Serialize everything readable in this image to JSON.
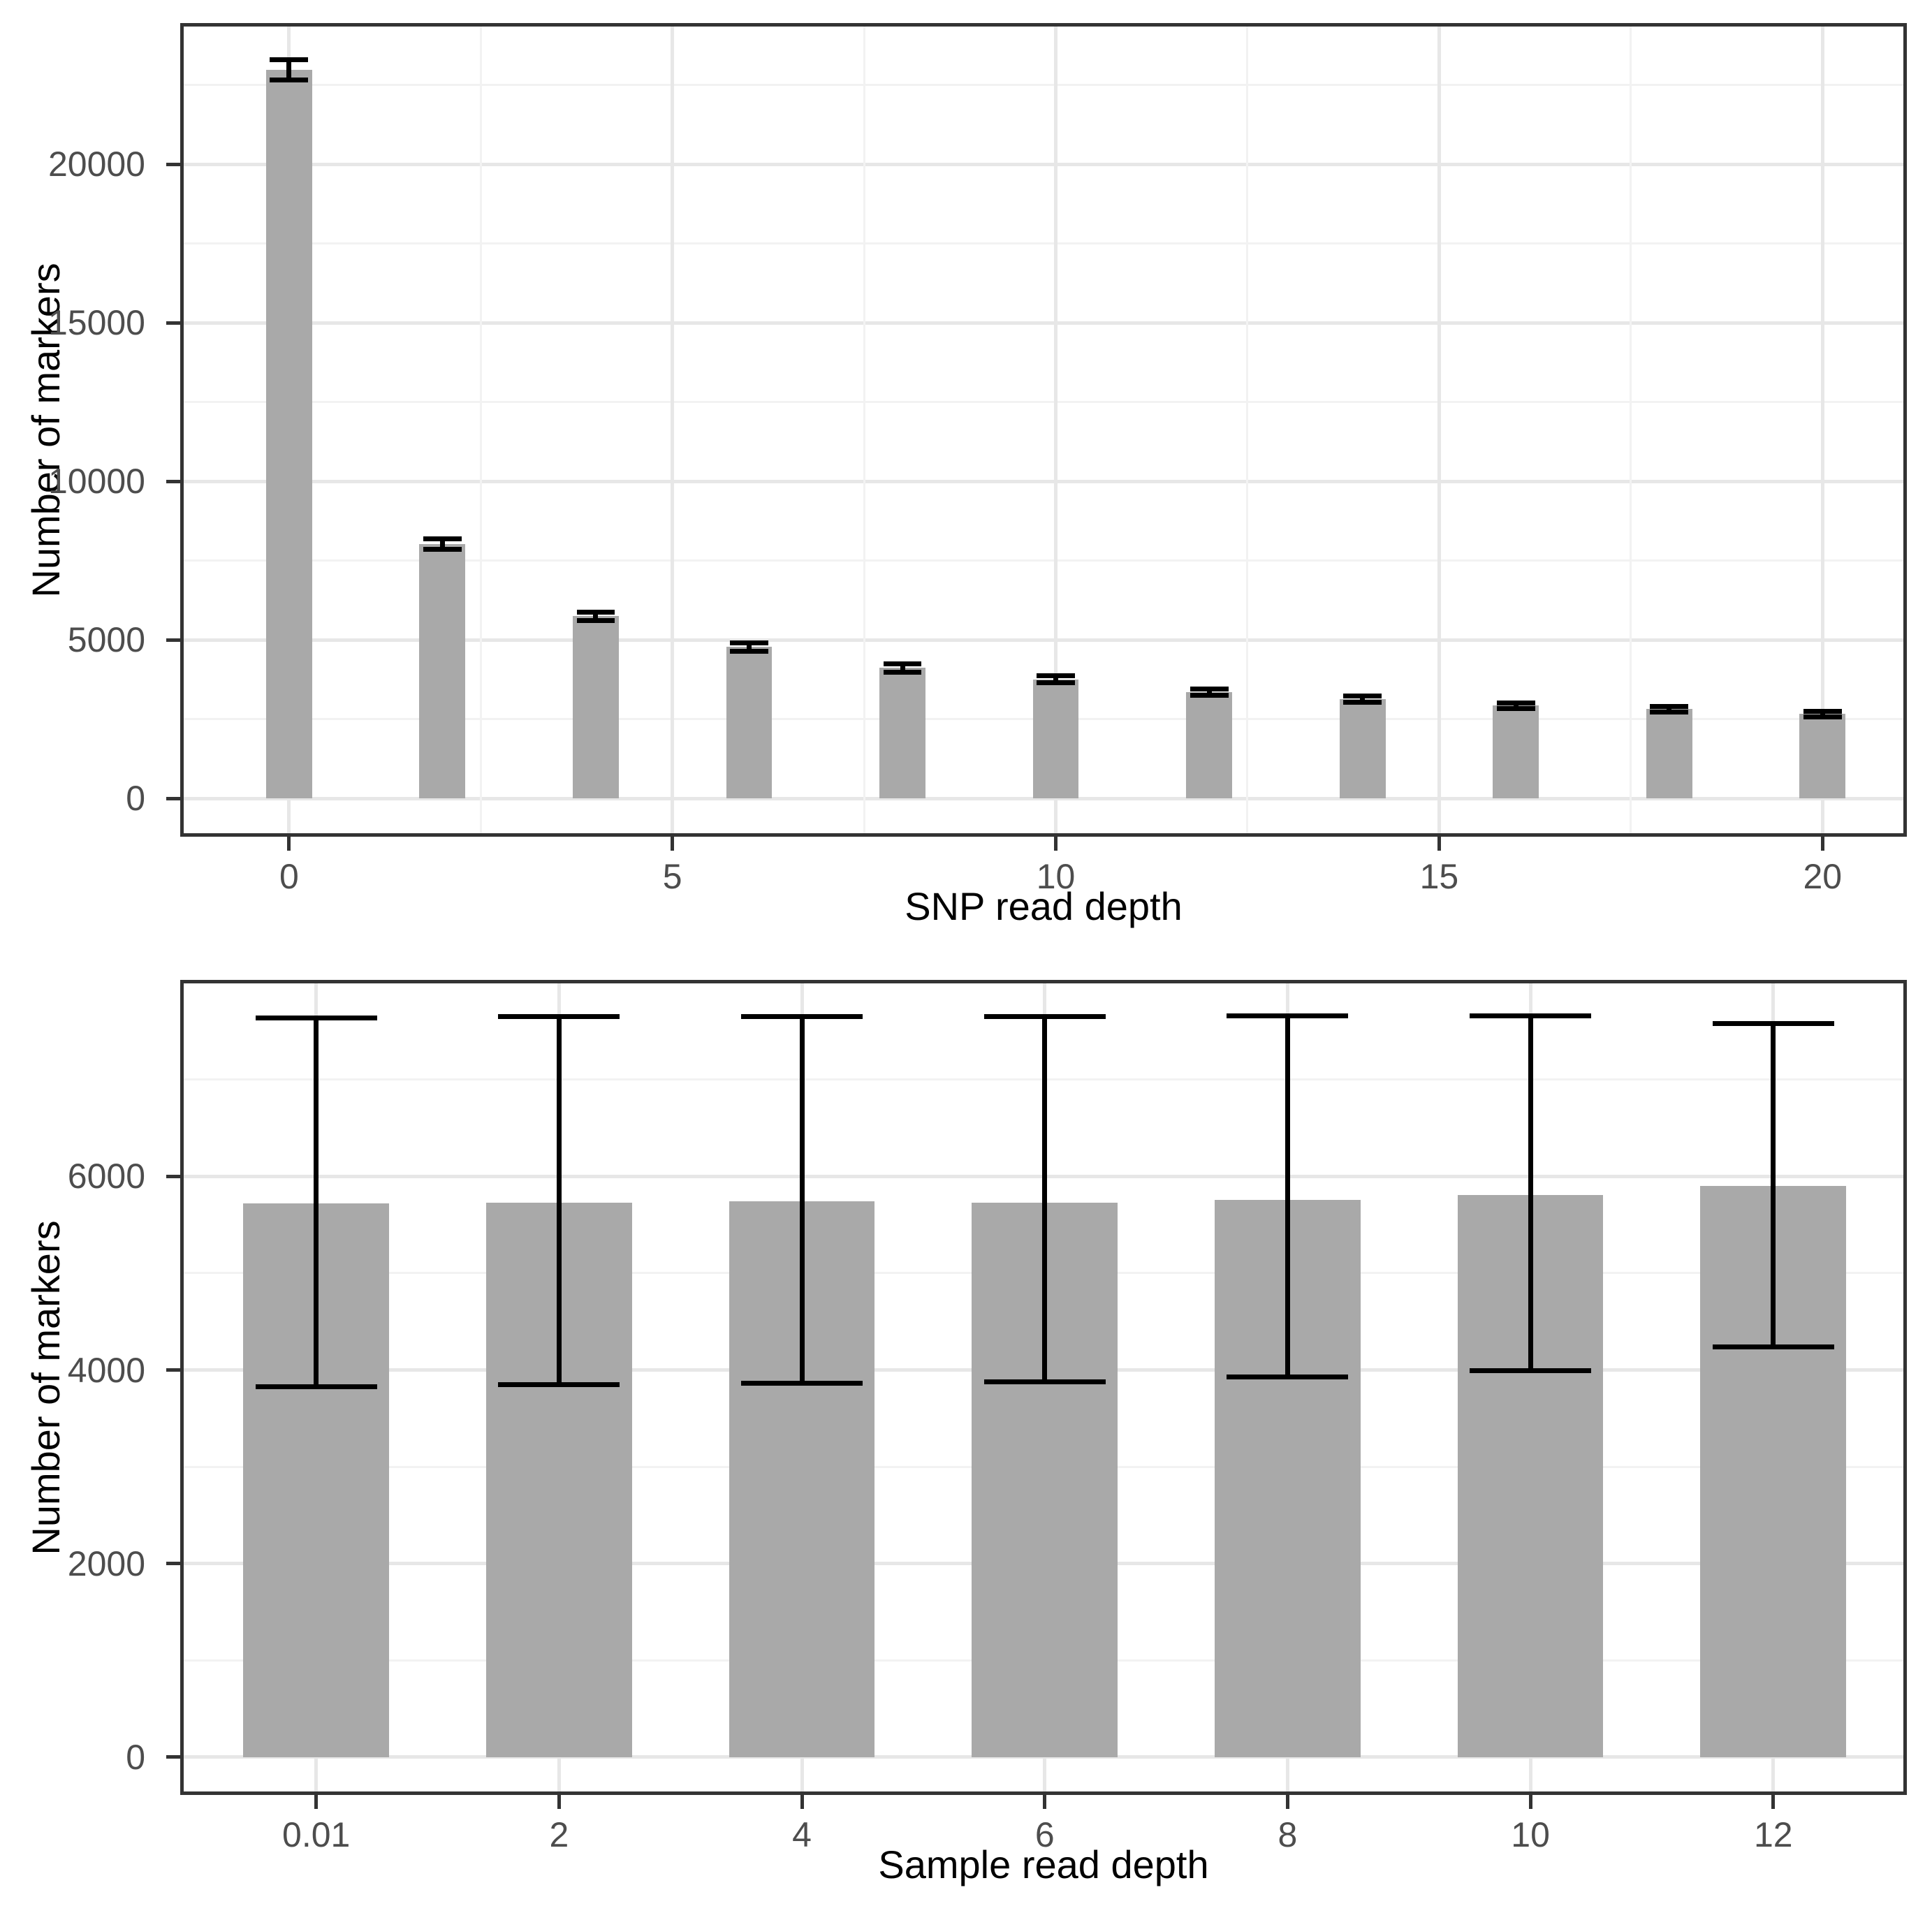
{
  "figure": {
    "background": "#ffffff"
  },
  "colors": {
    "bar_fill": "#a9a9a9",
    "error_bar": "#000000",
    "panel_border": "#333333",
    "grid_major": "#e7e7e7",
    "grid_minor": "#f2f2f2",
    "tick_text": "#4d4d4d",
    "axis_title_text": "#000000"
  },
  "chart_data": [
    {
      "type": "bar",
      "title": "",
      "xlabel": "SNP read depth",
      "ylabel": "Number of markers",
      "x_type": "linear",
      "xlim": [
        -1.42,
        21.1
      ],
      "ylim": [
        -1200,
        24450
      ],
      "grid": true,
      "legend_position": "none",
      "x_major_ticks": [
        0,
        5,
        10,
        15,
        20
      ],
      "x_tick_labels": [
        "0",
        "5",
        "10",
        "15",
        "20"
      ],
      "x_minor_gridlines": [
        2.5,
        7.5,
        12.5,
        17.5
      ],
      "y_major_ticks": [
        0,
        5000,
        10000,
        15000,
        20000
      ],
      "y_tick_labels": [
        "0",
        "5000",
        "10000",
        "15000",
        "20000"
      ],
      "y_minor_gridlines": [
        2500,
        7500,
        12500,
        17500,
        22500
      ],
      "bar_width_units": 0.6,
      "errorbar_cap_width_units": 0.5,
      "bars": [
        {
          "x": 0,
          "mean": 22970,
          "lower": 22650,
          "upper": 23290
        },
        {
          "x": 2,
          "mean": 8020,
          "lower": 7860,
          "upper": 8180
        },
        {
          "x": 4,
          "mean": 5750,
          "lower": 5620,
          "upper": 5880
        },
        {
          "x": 6,
          "mean": 4780,
          "lower": 4640,
          "upper": 4920
        },
        {
          "x": 8,
          "mean": 4120,
          "lower": 3985,
          "upper": 4255
        },
        {
          "x": 10,
          "mean": 3760,
          "lower": 3645,
          "upper": 3875
        },
        {
          "x": 12,
          "mean": 3360,
          "lower": 3255,
          "upper": 3465
        },
        {
          "x": 14,
          "mean": 3140,
          "lower": 3045,
          "upper": 3235
        },
        {
          "x": 16,
          "mean": 2930,
          "lower": 2840,
          "upper": 3020
        },
        {
          "x": 18,
          "mean": 2820,
          "lower": 2735,
          "upper": 2905
        },
        {
          "x": 20,
          "mean": 2670,
          "lower": 2585,
          "upper": 2755
        }
      ]
    },
    {
      "type": "bar",
      "title": "",
      "xlabel": "Sample read depth",
      "ylabel": "Number of markers",
      "x_type": "categorical",
      "categories": [
        "0.01",
        "2",
        "4",
        "6",
        "8",
        "10",
        "12"
      ],
      "xlim": [
        -0.56,
        6.55
      ],
      "ylim": [
        -390,
        8030
      ],
      "grid": true,
      "legend_position": "none",
      "x_major_ticks": [
        0,
        1,
        2,
        3,
        4,
        5,
        6
      ],
      "y_major_ticks": [
        0,
        2000,
        4000,
        6000
      ],
      "y_tick_labels": [
        "0",
        "2000",
        "4000",
        "6000"
      ],
      "y_minor_gridlines": [
        1000,
        3000,
        5000,
        7000
      ],
      "bar_width_units": 0.6,
      "errorbar_cap_width_units": 0.5,
      "bars": [
        {
          "x": 0,
          "category": "0.01",
          "mean": 5720,
          "lower": 3830,
          "upper": 7640
        },
        {
          "x": 1,
          "category": "2",
          "mean": 5730,
          "lower": 3850,
          "upper": 7650
        },
        {
          "x": 2,
          "category": "4",
          "mean": 5740,
          "lower": 3860,
          "upper": 7650
        },
        {
          "x": 3,
          "category": "6",
          "mean": 5730,
          "lower": 3875,
          "upper": 7650
        },
        {
          "x": 4,
          "category": "8",
          "mean": 5760,
          "lower": 3930,
          "upper": 7660
        },
        {
          "x": 5,
          "category": "10",
          "mean": 5810,
          "lower": 3995,
          "upper": 7660
        },
        {
          "x": 6,
          "category": "12",
          "mean": 5900,
          "lower": 4240,
          "upper": 7580
        }
      ]
    }
  ]
}
